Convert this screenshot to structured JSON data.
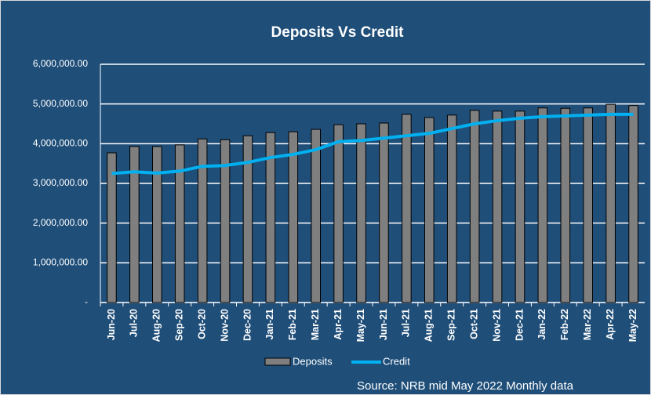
{
  "chart_data": {
    "type": "bar_line",
    "title": "Deposits Vs Credit",
    "categories": [
      "Jun-20",
      "Jul-20",
      "Aug-20",
      "Sep-20",
      "Oct-20",
      "Nov-20",
      "Dec-20",
      "Jan-21",
      "Feb-21",
      "Mar-21",
      "Apr-21",
      "May-21",
      "Jun-21",
      "Jul-21",
      "Aug-21",
      "Sep-21",
      "Oct-21",
      "Nov-21",
      "Dec-21",
      "Jan-22",
      "Feb-22",
      "Mar-22",
      "Apr-22",
      "May-22"
    ],
    "series": [
      {
        "name": "Deposits",
        "type": "bar",
        "color": "#7f7f7f",
        "values": [
          3770000,
          3930000,
          3930000,
          3970000,
          4120000,
          4100000,
          4200000,
          4280000,
          4300000,
          4360000,
          4480000,
          4500000,
          4520000,
          4740000,
          4660000,
          4720000,
          4840000,
          4820000,
          4820000,
          4900000,
          4890000,
          4900000,
          4990000,
          4960000
        ]
      },
      {
        "name": "Credit",
        "type": "line",
        "color": "#00b0f0",
        "values": [
          3250000,
          3290000,
          3260000,
          3310000,
          3430000,
          3450000,
          3530000,
          3650000,
          3730000,
          3850000,
          4050000,
          4080000,
          4140000,
          4200000,
          4260000,
          4380000,
          4500000,
          4580000,
          4640000,
          4680000,
          4700000,
          4720000,
          4740000,
          4740000
        ]
      }
    ],
    "ylim": [
      0,
      6000000
    ],
    "yticks": [
      {
        "value": 0,
        "label": "-"
      },
      {
        "value": 1000000,
        "label": "1,000,000.00"
      },
      {
        "value": 2000000,
        "label": "2,000,000.00"
      },
      {
        "value": 3000000,
        "label": "3,000,000.00"
      },
      {
        "value": 4000000,
        "label": "4,000,000.00"
      },
      {
        "value": 5000000,
        "label": "5,000,000.00"
      },
      {
        "value": 6000000,
        "label": "6,000,000.00"
      }
    ],
    "grid": true,
    "legend": "bottom",
    "annotations": [
      "Source: NRB mid May 2022 Monthly data"
    ]
  }
}
